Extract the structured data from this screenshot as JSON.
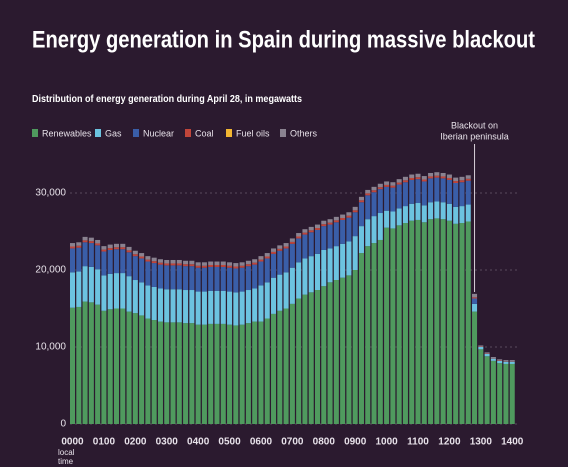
{
  "chart_data": {
    "type": "stacked-bar",
    "title": "Energy generation in Spain during massive blackout",
    "subtitle": "Distribution of energy generation during April 28, in megawatts",
    "x_label": "local time",
    "annotation": [
      "Blackout on",
      "Iberian peninsula"
    ],
    "categories": [
      "0000",
      null,
      null,
      null,
      null,
      "0100",
      null,
      null,
      null,
      null,
      "0200",
      null,
      null,
      null,
      null,
      "0300",
      null,
      null,
      null,
      null,
      "0400",
      null,
      null,
      null,
      null,
      "0500",
      null,
      null,
      null,
      null,
      "0600",
      null,
      null,
      null,
      null,
      "0700",
      null,
      null,
      null,
      null,
      "0800",
      null,
      null,
      null,
      null,
      "0900",
      null,
      null,
      null,
      null,
      "1000",
      null,
      null,
      null,
      null,
      "1100",
      null,
      null,
      null,
      null,
      "1200",
      null,
      null,
      null,
      null,
      "1300",
      null,
      null,
      null,
      null,
      "1400"
    ],
    "series": [
      {
        "name": "Renewables",
        "color": "#4f9a5e",
        "values": [
          15100,
          15200,
          15900,
          15800,
          15500,
          14700,
          14900,
          15000,
          15000,
          14600,
          14400,
          14100,
          13700,
          13500,
          13300,
          13200,
          13200,
          13200,
          13100,
          13100,
          12900,
          12900,
          13000,
          13000,
          13000,
          12900,
          12800,
          12900,
          13100,
          13300,
          13300,
          13700,
          14300,
          14700,
          15000,
          15600,
          16300,
          16800,
          17100,
          17400,
          17900,
          18400,
          18700,
          19000,
          19300,
          20000,
          22200,
          23100,
          23500,
          23900,
          25500,
          25400,
          25800,
          26100,
          26400,
          26500,
          26200,
          26600,
          26700,
          26600,
          26400,
          26000,
          26100,
          26300,
          14600,
          9700,
          8800,
          8200,
          7900,
          7800,
          7800
        ]
      },
      {
        "name": "Gas",
        "color": "#6cc3e0",
        "values": [
          4600,
          4600,
          4600,
          4600,
          4600,
          4600,
          4600,
          4600,
          4600,
          4600,
          4300,
          4300,
          4300,
          4300,
          4300,
          4300,
          4300,
          4300,
          4300,
          4300,
          4300,
          4300,
          4300,
          4300,
          4300,
          4300,
          4300,
          4300,
          4300,
          4300,
          4700,
          4700,
          4700,
          4700,
          4700,
          4700,
          4700,
          4700,
          4700,
          4700,
          4700,
          4400,
          4400,
          4400,
          4400,
          4400,
          3500,
          3500,
          3500,
          3500,
          2200,
          2200,
          2200,
          2200,
          2200,
          2200,
          2200,
          2200,
          2200,
          2200,
          2200,
          2200,
          2200,
          2200,
          1000,
          300,
          300,
          300,
          300,
          300,
          300
        ]
      },
      {
        "name": "Nuclear",
        "color": "#3a5ea8",
        "values": [
          3100,
          3100,
          3100,
          3100,
          3100,
          3100,
          3100,
          3100,
          3100,
          3100,
          3100,
          3100,
          3100,
          3100,
          3100,
          3100,
          3100,
          3100,
          3100,
          3100,
          3100,
          3100,
          3100,
          3100,
          3100,
          3100,
          3100,
          3100,
          3100,
          3100,
          3100,
          3100,
          3100,
          3100,
          3100,
          3100,
          3100,
          3100,
          3100,
          3100,
          3100,
          3100,
          3100,
          3100,
          3100,
          3100,
          3100,
          3100,
          3100,
          3100,
          3100,
          3100,
          3100,
          3100,
          3100,
          3100,
          3100,
          3100,
          3100,
          3100,
          3100,
          3100,
          3100,
          3100,
          700,
          0,
          0,
          0,
          0,
          0,
          0
        ]
      },
      {
        "name": "Coal",
        "color": "#c0453a",
        "values": [
          250,
          250,
          250,
          250,
          250,
          250,
          250,
          250,
          250,
          250,
          250,
          250,
          250,
          250,
          250,
          250,
          250,
          250,
          250,
          250,
          250,
          250,
          250,
          250,
          250,
          250,
          250,
          250,
          250,
          250,
          250,
          250,
          250,
          250,
          250,
          250,
          250,
          250,
          250,
          250,
          250,
          250,
          250,
          250,
          250,
          250,
          250,
          250,
          250,
          250,
          250,
          250,
          250,
          250,
          250,
          250,
          250,
          250,
          250,
          250,
          250,
          250,
          250,
          250,
          150,
          50,
          50,
          50,
          50,
          50,
          50
        ]
      },
      {
        "name": "Fuel oils",
        "color": "#f2b632",
        "values": [
          0,
          0,
          0,
          0,
          0,
          0,
          0,
          0,
          0,
          0,
          0,
          0,
          0,
          0,
          0,
          0,
          0,
          0,
          0,
          0,
          0,
          0,
          0,
          0,
          0,
          0,
          0,
          0,
          0,
          0,
          0,
          0,
          0,
          0,
          0,
          0,
          0,
          0,
          0,
          0,
          0,
          0,
          0,
          0,
          0,
          0,
          0,
          0,
          0,
          0,
          0,
          0,
          0,
          0,
          0,
          0,
          0,
          0,
          0,
          0,
          0,
          0,
          0,
          0,
          0,
          0,
          0,
          0,
          0,
          0,
          0
        ]
      },
      {
        "name": "Others",
        "color": "#8a8290",
        "values": [
          450,
          450,
          450,
          450,
          450,
          450,
          450,
          450,
          450,
          450,
          450,
          450,
          450,
          450,
          450,
          450,
          450,
          450,
          450,
          450,
          450,
          450,
          450,
          450,
          450,
          450,
          450,
          450,
          450,
          450,
          450,
          450,
          450,
          450,
          450,
          450,
          450,
          450,
          450,
          450,
          450,
          450,
          450,
          450,
          450,
          450,
          450,
          450,
          450,
          450,
          450,
          450,
          450,
          450,
          450,
          450,
          450,
          450,
          450,
          450,
          450,
          450,
          450,
          450,
          450,
          150,
          150,
          150,
          150,
          150,
          150
        ]
      }
    ],
    "ylim": [
      0,
      35000
    ],
    "yticks": [
      0,
      {
        "value": 10000,
        "label": "10,000"
      },
      {
        "value": 20000,
        "label": "20,000"
      },
      {
        "value": 30000,
        "label": "30,000"
      }
    ],
    "grid": true
  }
}
